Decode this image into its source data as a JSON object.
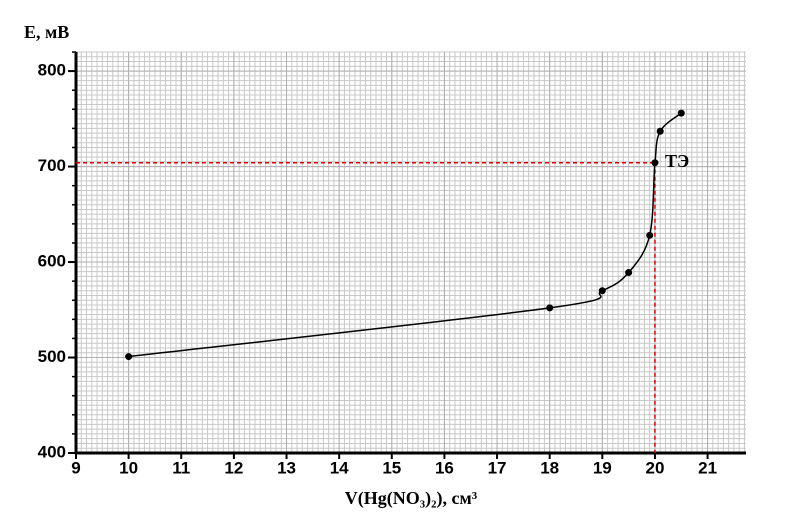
{
  "chart_data": {
    "type": "line",
    "xlabel": "V(Hg(NO₃)₂), см³",
    "ylabel": "E, мВ",
    "x": [
      10,
      18,
      19,
      19.5,
      19.9,
      20,
      20.1,
      20.5
    ],
    "series": [
      {
        "color": "#000000",
        "values": [
          501,
          552,
          570,
          589,
          628,
          704,
          737,
          756
        ]
      }
    ],
    "xlim": [
      9,
      21.73
    ],
    "ylim": [
      400,
      820
    ],
    "xticks": [
      9,
      10,
      11,
      12,
      13,
      14,
      15,
      16,
      17,
      18,
      19,
      20,
      21
    ],
    "yticks": [
      400,
      500,
      600,
      700,
      800
    ],
    "grid": true,
    "annotation": {
      "x": 20,
      "y": 704,
      "label": "ТЭ",
      "color": "#e00000"
    }
  }
}
